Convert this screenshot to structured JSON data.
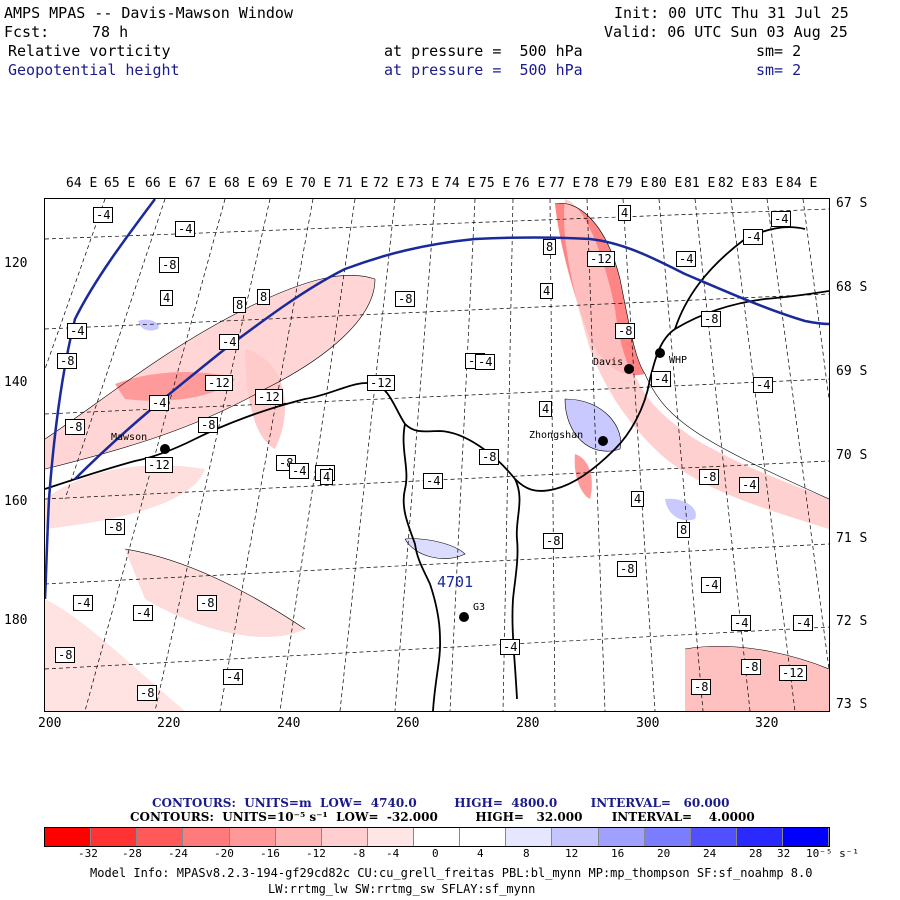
{
  "header": {
    "title": "AMPS MPAS -- Davis-Mawson Window",
    "init": "Init: 00 UTC Thu 31 Jul 25",
    "fcst_label": "Fcst:",
    "fcst_value": "78 h",
    "valid": "Valid: 06 UTC Sun 03 Aug 25",
    "field1_name": "Relative vorticity",
    "field1_level": "at pressure =  500 hPa",
    "field1_sm": "sm= 2",
    "field2_name": "Geopotential height",
    "field2_level": "at pressure =  500 hPa",
    "field2_sm": "sm= 2"
  },
  "axes": {
    "lon_labels": [
      "64 E",
      "65 E",
      "66 E",
      "67 E",
      "68 E",
      "69 E",
      "70 E",
      "71 E",
      "72 E",
      "73 E",
      "74 E",
      "75 E",
      "76 E",
      "77 E",
      "78 E",
      "79 E",
      "80 E",
      "81 E",
      "82 E",
      "83 E",
      "84 E"
    ],
    "lat_labels": [
      "67 S",
      "68 S",
      "69 S",
      "70 S",
      "71 S",
      "72 S",
      "73 S"
    ],
    "x_ticks": [
      "200",
      "220",
      "240",
      "260",
      "280",
      "300",
      "320"
    ],
    "y_ticks": [
      "120",
      "140",
      "160",
      "180"
    ]
  },
  "stations": {
    "mawson": "Mawson",
    "davis": "Davis",
    "zhongshan": "Zhongshan",
    "whp": "WHP",
    "g3": "G3"
  },
  "height_label": "4701",
  "vort_labels": [
    "-4",
    "-8",
    "4",
    "8",
    "-4",
    "-8",
    "-4",
    "8",
    "-12",
    "-12",
    "-4",
    "-8",
    "-8",
    "-12",
    "-4",
    "-8",
    "-8",
    "-12",
    "-4",
    "-8",
    "-4",
    "-8",
    "4",
    "-4",
    "8",
    "-12",
    "4",
    "-8",
    "4",
    "-4",
    "-4",
    "-4",
    "-8",
    "-4",
    "-8",
    "-4",
    "-8",
    "4",
    "-8",
    "-4",
    "-4",
    "-4",
    "8",
    "-4",
    "-8",
    "-8",
    "-4",
    "-8",
    "-4",
    "4",
    "-4",
    "-8",
    "-4",
    "-4",
    "-8",
    "-12",
    "-4"
  ],
  "contours_info": {
    "line1": "CONTOURS:  UNITS=m  LOW=  4740.0         HIGH=  4800.0        INTERVAL=   60.000",
    "line2": "CONTOURS:  UNITS=10⁻⁵ s⁻¹  LOW=  -32.000         HIGH=   32.000       INTERVAL=    4.0000"
  },
  "colorbar": {
    "colors": [
      "#ff0000",
      "#ff3333",
      "#ff5959",
      "#ff7b7b",
      "#ff9999",
      "#ffb5b5",
      "#ffcfcf",
      "#ffe6e6",
      "#ffffff",
      "#ffffff",
      "#e6e6ff",
      "#c4c4ff",
      "#a0a0ff",
      "#7c7cff",
      "#5050ff",
      "#2a2aff",
      "#0000ff"
    ],
    "ticks": [
      "-32",
      "-28",
      "-24",
      "-20",
      "-16",
      "-12",
      "-8",
      "-4",
      "0",
      "4",
      "8",
      "12",
      "16",
      "20",
      "24",
      "28",
      "32",
      "10⁻⁵ s⁻¹"
    ]
  },
  "footer": {
    "line1": "Model Info: MPASv8.2.3-194-gf29cd82c CU:cu_grell_freitas PBL:bl_mynn MP:mp_thompson SF:sf_noahmp 8.0",
    "line2": "LW:rrtmg_lw SW:rrtmg_sw SFLAY:sf_mynn"
  }
}
